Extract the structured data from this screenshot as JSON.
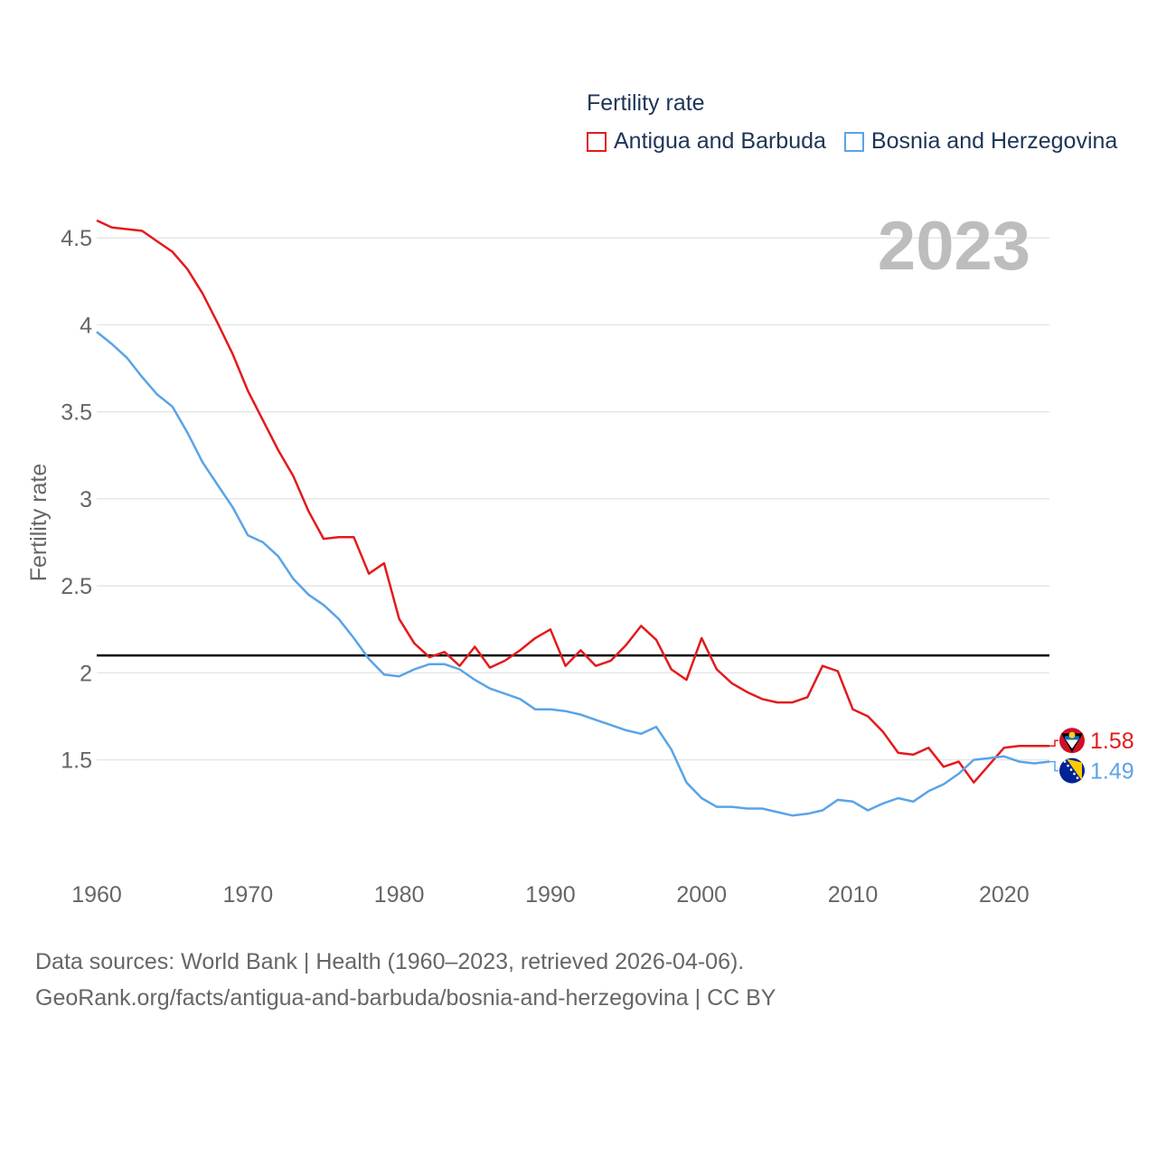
{
  "chart_data": {
    "type": "line",
    "legend_title": "Fertility rate",
    "ylabel": "Fertility rate",
    "year_label": "2023",
    "ylim": [
      0.88,
      4.62
    ],
    "xlim": [
      1960,
      2023
    ],
    "y_ticks": [
      1.5,
      2,
      2.5,
      3,
      3.5,
      4,
      4.5
    ],
    "y_tick_labels": [
      "1.5",
      "2",
      "2.5",
      "3",
      "3.5",
      "4",
      "4.5"
    ],
    "x_ticks": [
      1960,
      1970,
      1980,
      1990,
      2000,
      2010,
      2020
    ],
    "x_tick_labels": [
      "1960",
      "1970",
      "1980",
      "1990",
      "2000",
      "2010",
      "2020"
    ],
    "reference_line": 2.1,
    "series": [
      {
        "name": "Antigua and Barbuda",
        "color": "#e31a1c",
        "end_label": "1.58",
        "flag": "antigua-and-barbuda-flag",
        "x": [
          1960,
          1961,
          1962,
          1963,
          1964,
          1965,
          1966,
          1967,
          1968,
          1969,
          1970,
          1971,
          1972,
          1973,
          1974,
          1975,
          1976,
          1977,
          1978,
          1979,
          1980,
          1981,
          1982,
          1983,
          1984,
          1985,
          1986,
          1987,
          1988,
          1989,
          1990,
          1991,
          1992,
          1993,
          1994,
          1995,
          1996,
          1997,
          1998,
          1999,
          2000,
          2001,
          2002,
          2003,
          2004,
          2005,
          2006,
          2007,
          2008,
          2009,
          2010,
          2011,
          2012,
          2013,
          2014,
          2015,
          2016,
          2017,
          2018,
          2019,
          2020,
          2021,
          2022,
          2023
        ],
        "values": [
          4.6,
          4.56,
          4.55,
          4.54,
          4.48,
          4.42,
          4.32,
          4.18,
          4.01,
          3.83,
          3.62,
          3.45,
          3.28,
          3.13,
          2.93,
          2.77,
          2.78,
          2.78,
          2.57,
          2.63,
          2.31,
          2.17,
          2.09,
          2.12,
          2.04,
          2.15,
          2.03,
          2.07,
          2.13,
          2.2,
          2.25,
          2.04,
          2.13,
          2.04,
          2.07,
          2.16,
          2.27,
          2.19,
          2.02,
          1.96,
          2.2,
          2.02,
          1.94,
          1.89,
          1.85,
          1.83,
          1.83,
          1.86,
          2.04,
          2.01,
          1.79,
          1.75,
          1.66,
          1.54,
          1.53,
          1.57,
          1.46,
          1.49,
          1.37,
          1.47,
          1.57,
          1.58,
          1.58,
          1.58
        ]
      },
      {
        "name": "Bosnia and Herzegovina",
        "color": "#5aa3e8",
        "end_label": "1.49",
        "flag": "bosnia-and-herzegovina-flag",
        "x": [
          1960,
          1961,
          1962,
          1963,
          1964,
          1965,
          1966,
          1967,
          1968,
          1969,
          1970,
          1971,
          1972,
          1973,
          1974,
          1975,
          1976,
          1977,
          1978,
          1979,
          1980,
          1981,
          1982,
          1983,
          1984,
          1985,
          1986,
          1987,
          1988,
          1989,
          1990,
          1991,
          1992,
          1993,
          1994,
          1995,
          1996,
          1997,
          1998,
          1999,
          2000,
          2001,
          2002,
          2003,
          2004,
          2005,
          2006,
          2007,
          2008,
          2009,
          2010,
          2011,
          2012,
          2013,
          2014,
          2015,
          2016,
          2017,
          2018,
          2019,
          2020,
          2021,
          2022,
          2023
        ],
        "values": [
          3.96,
          3.89,
          3.81,
          3.7,
          3.6,
          3.53,
          3.38,
          3.21,
          3.08,
          2.95,
          2.79,
          2.75,
          2.67,
          2.54,
          2.45,
          2.39,
          2.31,
          2.2,
          2.08,
          1.99,
          1.98,
          2.02,
          2.05,
          2.05,
          2.02,
          1.96,
          1.91,
          1.88,
          1.85,
          1.79,
          1.79,
          1.78,
          1.76,
          1.73,
          1.7,
          1.67,
          1.65,
          1.69,
          1.56,
          1.37,
          1.28,
          1.23,
          1.23,
          1.22,
          1.22,
          1.2,
          1.18,
          1.19,
          1.21,
          1.27,
          1.26,
          1.21,
          1.25,
          1.28,
          1.26,
          1.32,
          1.36,
          1.42,
          1.5,
          1.51,
          1.52,
          1.49,
          1.48,
          1.49
        ]
      }
    ]
  },
  "footer": {
    "line1": "Data sources: World Bank | Health (1960–2023, retrieved 2026-04-06).",
    "line2": "GeoRank.org/facts/antigua-and-barbuda/bosnia-and-herzegovina | CC BY"
  }
}
